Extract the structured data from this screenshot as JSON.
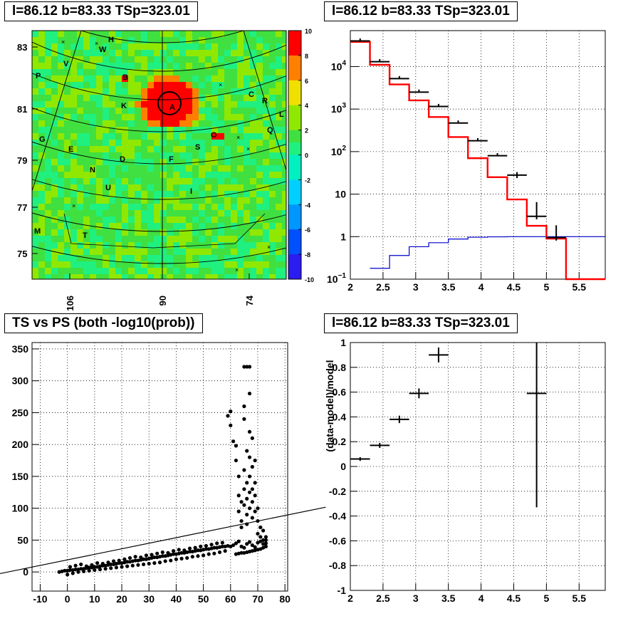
{
  "panel_titles": {
    "skymap": "l=86.12 b=83.33 TSp=323.01",
    "spectrum": "l=86.12 b=83.33 TSp=323.01",
    "scatter": "TS vs PS (both -log10(prob))",
    "residual": "l=86.12 b=83.33 TSp=323.01"
  },
  "colors": {
    "red": "#ff0000",
    "blue": "#0000cc",
    "black": "#000000",
    "grid": "#000000"
  },
  "chart_data": [
    {
      "type": "heatmap",
      "title": "l=86.12 b=83.33 TSp=323.01",
      "x_ticks": [
        "106",
        "90",
        "74"
      ],
      "y_ticks": [
        "83",
        "81",
        "79",
        "77",
        "75"
      ],
      "colorbar": {
        "min": -10,
        "max": 10,
        "ticks": [
          "10",
          "8",
          "6",
          "4",
          "2",
          "0",
          "-2",
          "-4",
          "-6",
          "-8",
          "-10"
        ]
      },
      "hotspots": [
        {
          "label": "A",
          "level": 10
        },
        {
          "label": "B",
          "level": 9
        },
        {
          "label": "O",
          "level": 9
        }
      ],
      "source_labels": [
        "H",
        "W",
        "V",
        "P",
        "B",
        "K",
        "A",
        "C",
        "R",
        "L",
        "Q",
        "O",
        "S",
        "G",
        "E",
        "D",
        "F",
        "N",
        "U",
        "I",
        "M",
        "T"
      ]
    },
    {
      "type": "line",
      "title": "l=86.12 b=83.33 TSp=323.01",
      "xlim": [
        2,
        5.9
      ],
      "ylim": [
        0.1,
        70000
      ],
      "yscale": "log",
      "x_ticks": [
        "2",
        "2.5",
        "3",
        "3.5",
        "4",
        "4.5",
        "5",
        "5.5"
      ],
      "y_ticks": [
        "10^{-1}",
        "1",
        "10",
        "10^{2}",
        "10^{3}",
        "10^{4}"
      ],
      "series": [
        {
          "kind": "data",
          "x": [
            2.15,
            2.45,
            2.75,
            3.05,
            3.35,
            3.65,
            3.95,
            4.25,
            4.55,
            4.85,
            5.15
          ],
          "y": [
            40000,
            13000,
            5200,
            2500,
            1150,
            470,
            180,
            80,
            28,
            3,
            0.95
          ],
          "yerr_low": [
            0,
            0,
            0,
            0,
            0,
            0,
            0,
            0,
            5,
            1.7,
            0.85
          ],
          "yerr_high": [
            0,
            0,
            0,
            0,
            0,
            0,
            0,
            0,
            5,
            3.5,
            0.9
          ]
        },
        {
          "kind": "model_total",
          "step": true,
          "edges": [
            2,
            2.3,
            2.6,
            2.9,
            3.2,
            3.5,
            3.8,
            4.1,
            4.4,
            4.7,
            5.0,
            5.3,
            5.9
          ],
          "values": [
            38000,
            11000,
            3800,
            1600,
            650,
            220,
            70,
            25,
            7.5,
            1.8,
            0.9,
            0.1
          ]
        },
        {
          "kind": "model_background",
          "step": true,
          "edges": [
            2.3,
            2.6,
            2.9,
            3.2,
            3.5,
            3.8,
            4.1,
            4.4,
            4.7,
            5.0,
            5.3,
            5.9
          ],
          "values": [
            0.18,
            0.36,
            0.58,
            0.72,
            0.88,
            0.97,
            0.99,
            1.0,
            1.0,
            1.0,
            1.0
          ]
        }
      ]
    },
    {
      "type": "scatter",
      "title": "TS vs PS (both -log10(prob))",
      "xlim": [
        -13,
        81
      ],
      "ylim": [
        -30,
        360
      ],
      "x_ticks": [
        "-10",
        "0",
        "10",
        "20",
        "30",
        "40",
        "50",
        "60",
        "70",
        "80"
      ],
      "y_ticks": [
        "0",
        "50",
        "100",
        "150",
        "200",
        "250",
        "300",
        "350"
      ],
      "fit_line": {
        "slope": 0.87,
        "intercept": 19
      },
      "points": [
        [
          -3,
          0
        ],
        [
          -2,
          1
        ],
        [
          -1,
          2
        ],
        [
          0,
          2
        ],
        [
          1,
          3
        ],
        [
          2,
          3
        ],
        [
          3,
          4
        ],
        [
          4,
          4
        ],
        [
          5,
          5
        ],
        [
          6,
          5
        ],
        [
          7,
          6
        ],
        [
          8,
          7
        ],
        [
          9,
          7
        ],
        [
          10,
          8
        ],
        [
          11,
          8
        ],
        [
          12,
          9
        ],
        [
          13,
          10
        ],
        [
          14,
          10
        ],
        [
          15,
          11
        ],
        [
          16,
          12
        ],
        [
          17,
          12
        ],
        [
          18,
          13
        ],
        [
          19,
          14
        ],
        [
          20,
          14
        ],
        [
          21,
          15
        ],
        [
          22,
          16
        ],
        [
          23,
          16
        ],
        [
          24,
          17
        ],
        [
          25,
          18
        ],
        [
          26,
          18
        ],
        [
          27,
          19
        ],
        [
          28,
          20
        ],
        [
          29,
          20
        ],
        [
          30,
          21
        ],
        [
          31,
          22
        ],
        [
          32,
          23
        ],
        [
          33,
          23
        ],
        [
          34,
          24
        ],
        [
          35,
          25
        ],
        [
          36,
          25
        ],
        [
          37,
          26
        ],
        [
          38,
          27
        ],
        [
          39,
          28
        ],
        [
          40,
          28
        ],
        [
          41,
          29
        ],
        [
          42,
          30
        ],
        [
          43,
          30
        ],
        [
          44,
          31
        ],
        [
          45,
          32
        ],
        [
          46,
          32
        ],
        [
          47,
          33
        ],
        [
          48,
          34
        ],
        [
          49,
          34
        ],
        [
          50,
          35
        ],
        [
          51,
          36
        ],
        [
          52,
          36
        ],
        [
          53,
          37
        ],
        [
          54,
          38
        ],
        [
          55,
          38
        ],
        [
          56,
          39
        ],
        [
          57,
          40
        ],
        [
          58,
          40
        ],
        [
          59,
          41
        ],
        [
          0,
          -4
        ],
        [
          2,
          -2
        ],
        [
          4,
          0
        ],
        [
          6,
          1
        ],
        [
          8,
          2
        ],
        [
          10,
          3
        ],
        [
          12,
          4
        ],
        [
          14,
          5
        ],
        [
          16,
          6
        ],
        [
          18,
          7
        ],
        [
          20,
          8
        ],
        [
          22,
          9
        ],
        [
          24,
          10
        ],
        [
          26,
          11
        ],
        [
          28,
          12
        ],
        [
          30,
          13
        ],
        [
          32,
          14
        ],
        [
          34,
          15
        ],
        [
          36,
          17
        ],
        [
          38,
          18
        ],
        [
          40,
          20
        ],
        [
          42,
          21
        ],
        [
          44,
          22
        ],
        [
          46,
          24
        ],
        [
          48,
          25
        ],
        [
          50,
          26
        ],
        [
          52,
          28
        ],
        [
          54,
          29
        ],
        [
          56,
          31
        ],
        [
          58,
          33
        ],
        [
          1,
          8
        ],
        [
          3,
          10
        ],
        [
          5,
          12
        ],
        [
          7,
          9
        ],
        [
          9,
          11
        ],
        [
          11,
          14
        ],
        [
          13,
          13
        ],
        [
          15,
          15
        ],
        [
          17,
          17
        ],
        [
          19,
          18
        ],
        [
          21,
          20
        ],
        [
          23,
          22
        ],
        [
          25,
          24
        ],
        [
          27,
          23
        ],
        [
          29,
          26
        ],
        [
          31,
          27
        ],
        [
          33,
          29
        ],
        [
          35,
          31
        ],
        [
          37,
          30
        ],
        [
          39,
          33
        ],
        [
          41,
          35
        ],
        [
          43,
          34
        ],
        [
          45,
          37
        ],
        [
          47,
          38
        ],
        [
          49,
          40
        ],
        [
          51,
          41
        ],
        [
          53,
          43
        ],
        [
          55,
          45
        ],
        [
          57,
          46
        ],
        [
          59,
          245
        ],
        [
          60,
          252
        ],
        [
          60,
          230
        ],
        [
          61,
          205
        ],
        [
          62,
          198
        ],
        [
          62,
          175
        ],
        [
          63,
          150
        ],
        [
          63,
          120
        ],
        [
          63,
          95
        ],
        [
          64,
          110
        ],
        [
          64,
          80
        ],
        [
          64,
          70
        ],
        [
          65,
          322
        ],
        [
          65,
          260
        ],
        [
          65,
          240
        ],
        [
          65,
          160
        ],
        [
          65,
          130
        ],
        [
          65,
          105
        ],
        [
          66,
          322
        ],
        [
          66,
          190
        ],
        [
          66,
          140
        ],
        [
          66,
          115
        ],
        [
          66,
          90
        ],
        [
          66,
          75
        ],
        [
          67,
          322
        ],
        [
          67,
          280
        ],
        [
          67,
          220
        ],
        [
          67,
          180
        ],
        [
          67,
          150
        ],
        [
          67,
          125
        ],
        [
          67,
          100
        ],
        [
          68,
          210
        ],
        [
          68,
          165
        ],
        [
          68,
          130
        ],
        [
          68,
          110
        ],
        [
          68,
          85
        ],
        [
          69,
          175
        ],
        [
          69,
          140
        ],
        [
          69,
          120
        ],
        [
          69,
          95
        ],
        [
          70,
          100
        ],
        [
          70,
          80
        ],
        [
          70,
          60
        ],
        [
          71,
          70
        ],
        [
          71,
          55
        ],
        [
          72,
          65
        ],
        [
          72,
          50
        ],
        [
          73,
          55
        ],
        [
          73,
          45
        ],
        [
          60,
          40
        ],
        [
          61,
          42
        ],
        [
          62,
          45
        ],
        [
          63,
          48
        ],
        [
          64,
          40
        ],
        [
          65,
          38
        ],
        [
          66,
          44
        ],
        [
          67,
          47
        ],
        [
          68,
          42
        ],
        [
          69,
          39
        ],
        [
          70,
          46
        ],
        [
          71,
          48
        ],
        [
          72,
          44
        ],
        [
          73,
          50
        ],
        [
          73,
          40
        ],
        [
          72,
          38
        ],
        [
          71,
          36
        ],
        [
          70,
          35
        ],
        [
          69,
          34
        ],
        [
          68,
          33
        ],
        [
          67,
          32
        ],
        [
          66,
          31
        ],
        [
          65,
          30
        ],
        [
          64,
          30
        ],
        [
          63,
          29
        ],
        [
          62,
          28
        ]
      ]
    },
    {
      "type": "scatter",
      "title": "l=86.12 b=83.33 TSp=323.01",
      "ylabel": "(data-model)/model",
      "xlim": [
        2,
        5.9
      ],
      "ylim": [
        -1,
        1
      ],
      "x_ticks": [
        "2",
        "2.5",
        "3",
        "3.5",
        "4",
        "4.5",
        "5",
        "5.5"
      ],
      "y_ticks": [
        "1",
        "0.8",
        "0.6",
        "0.4",
        "0.2",
        "0",
        "-0.2",
        "-0.4",
        "-0.6",
        "-0.8",
        "-1"
      ],
      "points": [
        {
          "x": 2.15,
          "y": 0.06,
          "xerr": 0.15,
          "yerr": 0.015
        },
        {
          "x": 2.45,
          "y": 0.17,
          "xerr": 0.15,
          "yerr": 0.02
        },
        {
          "x": 2.75,
          "y": 0.38,
          "xerr": 0.15,
          "yerr": 0.03
        },
        {
          "x": 3.05,
          "y": 0.59,
          "xerr": 0.15,
          "yerr": 0.04
        },
        {
          "x": 3.35,
          "y": 0.9,
          "xerr": 0.15,
          "yerr": 0.06
        },
        {
          "x": 4.85,
          "y": 0.59,
          "xerr": 0.15,
          "yerr_low": 0.92,
          "yerr_high": 0.45
        }
      ]
    }
  ]
}
